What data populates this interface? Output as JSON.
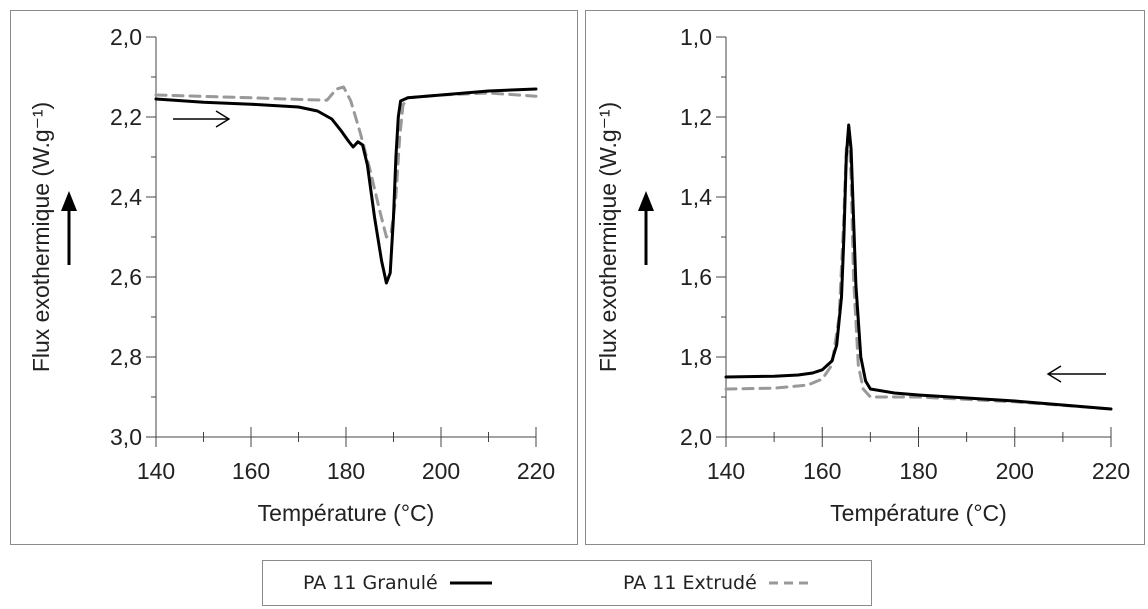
{
  "chart_data": [
    {
      "type": "line",
      "xlabel": "Température (°C)",
      "ylabel": "Flux exothermique (W.g⁻¹)",
      "xlim": [
        140,
        220
      ],
      "ylim": [
        2.0,
        3.0
      ],
      "y_inverted": true,
      "xticks": [
        "140",
        "160",
        "180",
        "200",
        "220"
      ],
      "yticks": [
        "2,0",
        "2,2",
        "2,4",
        "2,6",
        "2,8",
        "3,0"
      ],
      "direction_arrow": "right",
      "series": [
        {
          "name": "PA 11 Granulé",
          "style": "solid",
          "color": "#000000",
          "x": [
            140,
            150,
            160,
            170,
            174,
            177,
            179,
            180.5,
            181.5,
            182.5,
            183.5,
            184.5,
            186,
            187.5,
            188.5,
            189.3,
            190,
            190.5,
            191,
            191.5,
            193,
            200,
            210,
            220
          ],
          "y": [
            2.155,
            2.163,
            2.168,
            2.175,
            2.185,
            2.205,
            2.235,
            2.26,
            2.275,
            2.262,
            2.27,
            2.32,
            2.45,
            2.56,
            2.615,
            2.59,
            2.45,
            2.3,
            2.2,
            2.16,
            2.152,
            2.145,
            2.135,
            2.13
          ]
        },
        {
          "name": "PA 11 Extrudé",
          "style": "dashed",
          "color": "#999999",
          "x": [
            140,
            160,
            170,
            176,
            178,
            179.5,
            181,
            183,
            185,
            187,
            188.5,
            189.5,
            190.5,
            191.3,
            192,
            193,
            200,
            210,
            220
          ],
          "y": [
            2.145,
            2.152,
            2.156,
            2.158,
            2.13,
            2.125,
            2.16,
            2.24,
            2.33,
            2.43,
            2.5,
            2.49,
            2.4,
            2.25,
            2.17,
            2.152,
            2.145,
            2.14,
            2.148
          ]
        }
      ]
    },
    {
      "type": "line",
      "xlabel": "Température (°C)",
      "ylabel": "Flux exothermique (W.g⁻¹)",
      "xlim": [
        140,
        220
      ],
      "ylim": [
        1.0,
        2.0
      ],
      "y_inverted": true,
      "xticks": [
        "140",
        "160",
        "180",
        "200",
        "220"
      ],
      "yticks": [
        "1,0",
        "1,2",
        "1,4",
        "1,6",
        "1,8",
        "2,0"
      ],
      "direction_arrow": "left",
      "series": [
        {
          "name": "PA 11 Granulé",
          "style": "solid",
          "color": "#000000",
          "x": [
            140,
            150,
            155,
            158,
            160,
            162,
            163,
            164,
            164.5,
            165,
            165.5,
            166,
            166.5,
            167,
            168,
            169,
            170,
            175,
            180,
            200,
            220
          ],
          "y": [
            1.85,
            1.848,
            1.845,
            1.84,
            1.832,
            1.81,
            1.77,
            1.65,
            1.5,
            1.3,
            1.22,
            1.28,
            1.45,
            1.62,
            1.8,
            1.86,
            1.88,
            1.89,
            1.895,
            1.91,
            1.93
          ]
        },
        {
          "name": "PA 11 Extrudé",
          "style": "dashed",
          "color": "#999999",
          "x": [
            140,
            150,
            157,
            160,
            162,
            163.5,
            164.5,
            165,
            165.5,
            166,
            166.5,
            167.5,
            168.5,
            170,
            180,
            200,
            220
          ],
          "y": [
            1.88,
            1.878,
            1.87,
            1.855,
            1.82,
            1.7,
            1.45,
            1.28,
            1.23,
            1.35,
            1.6,
            1.82,
            1.88,
            1.9,
            1.9,
            1.912,
            1.93
          ]
        }
      ]
    }
  ],
  "legend": {
    "items": [
      {
        "label": "PA 11 Granulé",
        "style": "solid",
        "color": "#000000"
      },
      {
        "label": "PA 11 Extrudé",
        "style": "dashed",
        "color": "#999999"
      }
    ]
  }
}
